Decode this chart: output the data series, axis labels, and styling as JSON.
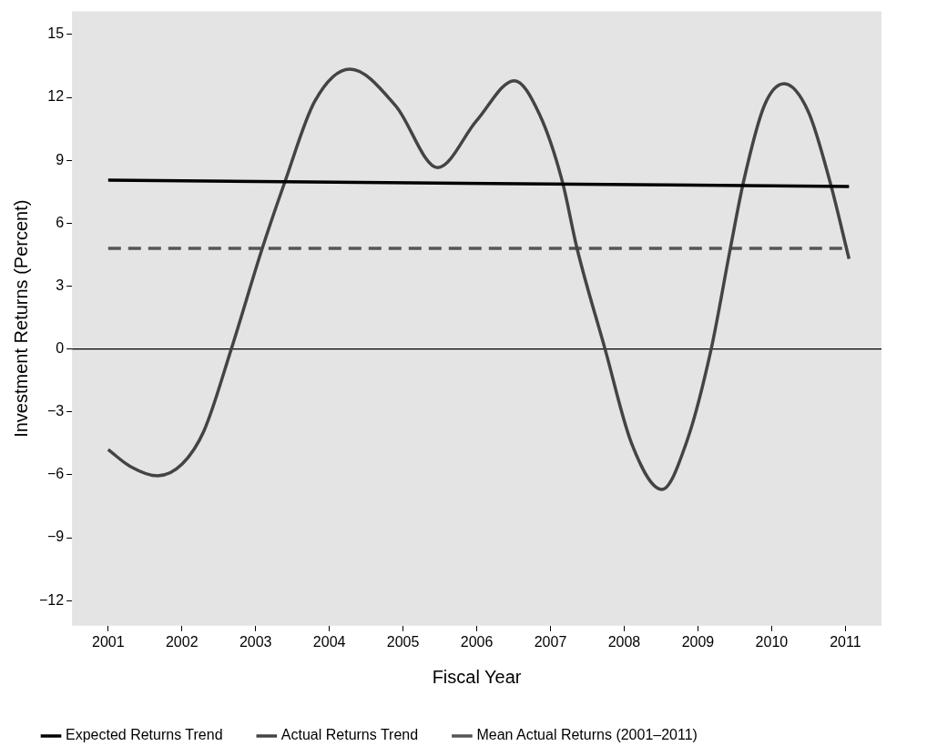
{
  "chart_data": {
    "type": "line",
    "xlabel": "Fiscal Year",
    "ylabel": "Investment Returns (Percent)",
    "xlim": [
      2000.51,
      2011.49
    ],
    "xticks": [
      2001,
      2002,
      2003,
      2004,
      2005,
      2006,
      2007,
      2008,
      2009,
      2010,
      2011
    ],
    "ylim": [
      -13.2,
      16.1
    ],
    "yticks": [
      -12,
      -9,
      -6,
      -3,
      0,
      3,
      6,
      9,
      12,
      15
    ],
    "series": [
      {
        "name": "Expected Returns Trend",
        "color": "#000000",
        "line_style": "solid",
        "x": [
          2001,
          2011.05
        ],
        "values": [
          8.05,
          7.75
        ]
      },
      {
        "name": "Actual Returns Trend",
        "color": "#444444",
        "line_style": "solid",
        "x": [
          2001,
          2001.3,
          2001.67,
          2002,
          2002.3,
          2002.67,
          2003.09,
          2003.4,
          2003.8,
          2004.28,
          2004.9,
          2005.47,
          2006,
          2006.51,
          2006.85,
          2007.16,
          2007.36,
          2007.74,
          2008.1,
          2008.51,
          2008.85,
          2009.18,
          2009.44,
          2009.62,
          2009.9,
          2010.17,
          2010.5,
          2010.79,
          2011.05
        ],
        "values": [
          -4.8,
          -5.6,
          -6.05,
          -5.5,
          -3.9,
          0,
          4.8,
          8,
          11.8,
          13.35,
          11.6,
          8.65,
          10.9,
          12.8,
          11.2,
          8,
          4.8,
          0,
          -4.5,
          -6.7,
          -4.4,
          0,
          4.8,
          8,
          11.6,
          12.65,
          11.3,
          8,
          4.3
        ]
      },
      {
        "name": "Mean Actual Returns (2001–2011)",
        "color": "#555555",
        "line_style": "dashed",
        "x": [
          2001,
          2011.05
        ],
        "values": [
          4.8,
          4.8
        ]
      }
    ],
    "ref_lines": [
      {
        "axis": "y",
        "value": 0,
        "color": "#000000"
      }
    ],
    "grid": false,
    "legend": "bottom",
    "marker": "none"
  }
}
